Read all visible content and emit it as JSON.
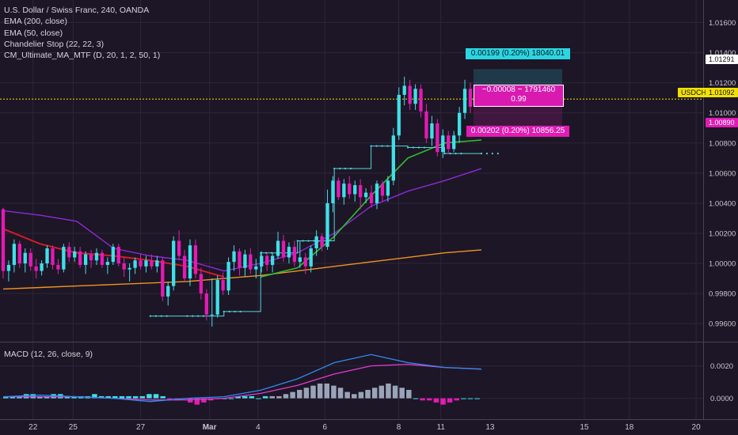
{
  "legend": {
    "title": "U.S. Dollar / Swiss Franc, 240, OANDA",
    "indicators": [
      "EMA (200, close)",
      "EMA (50, close)",
      "Chandelier Stop (22, 22, 3)",
      "CM_Ultimate_MA_MTF (D, 20, 1, 2, 50, 1)"
    ]
  },
  "macd_label": "MACD (12, 26, close, 9)",
  "price_axis": {
    "ticks": [
      "1.01600",
      "1.01400",
      "1.01200",
      "1.01000",
      "1.00800",
      "1.00600",
      "1.00400",
      "1.00200",
      "1.00000",
      "0.99800",
      "0.99600"
    ],
    "tick_values": [
      1.016,
      1.014,
      1.012,
      1.01,
      1.008,
      1.006,
      1.004,
      1.002,
      1.0,
      0.998,
      0.996
    ]
  },
  "macd_axis": {
    "ticks": [
      "0.0020",
      "0.0000"
    ],
    "tick_values": [
      0.002,
      0.0
    ]
  },
  "time_axis": {
    "labels": [
      "22",
      "25",
      "27",
      "Mar",
      "4",
      "6",
      "8",
      "11",
      "13",
      "15",
      "18",
      "20"
    ],
    "bold": [
      false,
      false,
      false,
      true,
      false,
      false,
      false,
      false,
      false,
      false,
      false,
      false
    ]
  },
  "price_tags": {
    "target": "1.01291",
    "current_symbol": "USDCHF",
    "current": "1.01092",
    "stop": "1.00890"
  },
  "risk_reward": {
    "target_label": "0.00199 (0.20%) 18040.01",
    "mid_line1": "−0.00008 ~ 1791460",
    "mid_line2": "0.99",
    "stop_label": "0.00202 (0.20%) 10856.25"
  },
  "colors": {
    "background": "#1d1626",
    "grid": "#2e2638",
    "bull": "#3fe0e8",
    "bear": "#e31bb4",
    "ema200": "#f0941e",
    "ema50": "#2fbf2f",
    "chandelier": "#4fd6dc",
    "ma_upper": "#8d2ad6",
    "ma_red": "#d11c2a",
    "macd_line": "#2e8bf0",
    "signal_line": "#e23ccf",
    "current_line": "#f2e000"
  },
  "chart_data": {
    "type": "candlestick",
    "symbol": "USDCHF",
    "timeframe": "240",
    "ylim": [
      0.9948,
      1.0175
    ],
    "candles": [
      [
        1.0036,
        1.0037,
        0.999,
        0.9995
      ],
      [
        0.9995,
        1.0002,
        0.9988,
        0.9999
      ],
      [
        0.9999,
        1.0016,
        0.9994,
        1.0013
      ],
      [
        1.0013,
        1.0015,
        0.9997,
        1.0
      ],
      [
        1.0,
        1.001,
        0.9994,
        1.0007
      ],
      [
        1.0007,
        1.001,
        0.9995,
        0.9998
      ],
      [
        0.9998,
        1.0003,
        0.999,
        0.9995
      ],
      [
        0.9995,
        1.0002,
        0.9992,
        1.0
      ],
      [
        1.0,
        1.0012,
        0.9997,
        1.001
      ],
      [
        1.001,
        1.0012,
        0.9996,
        0.9999
      ],
      [
        0.9999,
        1.0003,
        0.9993,
        0.9996
      ],
      [
        0.9996,
        1.0013,
        0.9994,
        1.0011
      ],
      [
        1.0011,
        1.0014,
        1.0001,
        1.0004
      ],
      [
        1.0004,
        1.0011,
        1.0001,
        1.0008
      ],
      [
        1.0008,
        1.0011,
        0.9997,
        0.9999
      ],
      [
        0.9999,
        1.0008,
        0.9993,
        1.0006
      ],
      [
        1.0006,
        1.0009,
        0.9997,
        1.0002
      ],
      [
        1.0002,
        1.001,
        0.9999,
        1.0007
      ],
      [
        1.0007,
        1.0009,
        0.9997,
        0.9999
      ],
      [
        0.9999,
        1.0004,
        0.9993,
        1.0001
      ],
      [
        1.0001,
        1.0013,
        0.9999,
        1.0011
      ],
      [
        1.0011,
        1.0013,
        0.9998,
        1.0
      ],
      [
        1.0,
        1.0004,
        0.9991,
        0.9996
      ],
      [
        0.9996,
        1.0,
        0.9988,
        0.9997
      ],
      [
        0.9997,
        1.0004,
        0.9993,
        1.0002
      ],
      [
        1.0002,
        1.0006,
        0.9996,
        0.9998
      ],
      [
        0.9998,
        1.0005,
        0.9994,
        1.0002
      ],
      [
        1.0002,
        1.0006,
        0.9996,
        0.9998
      ],
      [
        0.9998,
        1.0005,
        0.9994,
        1.0002
      ],
      [
        1.0002,
        1.0004,
        0.9975,
        0.9978
      ],
      [
        0.9978,
        0.9988,
        0.9972,
        0.9985
      ],
      [
        0.9985,
        1.0018,
        0.9982,
        1.0015
      ],
      [
        1.0015,
        1.0022,
        1.0002,
        1.0005
      ],
      [
        1.0005,
        1.0009,
        0.9988,
        0.999
      ],
      [
        0.999,
        1.0016,
        0.9985,
        1.0012
      ],
      [
        1.0012,
        1.0016,
        0.999,
        0.9993
      ],
      [
        0.9993,
        0.9997,
        0.9976,
        0.998
      ],
      [
        0.998,
        0.9983,
        0.9962,
        0.9966
      ],
      [
        0.9966,
        0.999,
        0.9958,
        0.9966
      ],
      [
        0.9966,
        0.9992,
        0.9964,
        0.9989
      ],
      [
        0.9989,
        0.9994,
        0.9979,
        0.9982
      ],
      [
        0.9982,
        1.0004,
        0.9979,
        1.0001
      ],
      [
        1.0001,
        1.0012,
        0.9995,
        1.0008
      ],
      [
        1.0008,
        1.001,
        0.9992,
        0.9997
      ],
      [
        0.9997,
        1.0009,
        0.9991,
        1.0006
      ],
      [
        1.0006,
        1.001,
        0.9993,
        0.9996
      ],
      [
        0.9996,
        1.0003,
        0.999,
        0.9998
      ],
      [
        0.9998,
        1.0008,
        0.9994,
        1.0005
      ],
      [
        1.0005,
        1.0007,
        0.9995,
        0.9999
      ],
      [
        0.9999,
        1.0007,
        0.9994,
        1.0005
      ],
      [
        1.0005,
        1.0021,
        1.0003,
        1.0015
      ],
      [
        1.0015,
        1.0019,
        1.0001,
        1.0004
      ],
      [
        1.0004,
        1.0014,
        1.0,
        1.0011
      ],
      [
        1.0011,
        1.0015,
        0.9998,
        1.0001
      ],
      [
        1.0001,
        1.0015,
        0.9997,
        1.0004
      ],
      [
        1.0004,
        1.0007,
        0.9993,
        0.9998
      ],
      [
        0.9998,
        1.0012,
        0.9994,
        1.001
      ],
      [
        1.001,
        1.0022,
        1.0005,
        1.0018
      ],
      [
        1.0018,
        1.002,
        1.0008,
        1.0011
      ],
      [
        1.0011,
        1.0049,
        1.0009,
        1.004
      ],
      [
        1.004,
        1.0058,
        1.0034,
        1.0055
      ],
      [
        1.0055,
        1.0057,
        1.0042,
        1.0044
      ],
      [
        1.0044,
        1.0056,
        1.0039,
        1.0053
      ],
      [
        1.0053,
        1.0058,
        1.0043,
        1.0046
      ],
      [
        1.0046,
        1.0055,
        1.0041,
        1.0052
      ],
      [
        1.0052,
        1.0056,
        1.0036,
        1.0044
      ],
      [
        1.0044,
        1.005,
        1.004,
        1.0047
      ],
      [
        1.0047,
        1.0052,
        1.0037,
        1.004
      ],
      [
        1.004,
        1.0055,
        1.0036,
        1.0053
      ],
      [
        1.0053,
        1.0055,
        1.0041,
        1.0045
      ],
      [
        1.0045,
        1.0058,
        1.0041,
        1.0055
      ],
      [
        1.0055,
        1.009,
        1.0052,
        1.0085
      ],
      [
        1.0085,
        1.0117,
        1.0082,
        1.0112
      ],
      [
        1.0112,
        1.0124,
        1.0105,
        1.0118
      ],
      [
        1.0118,
        1.0122,
        1.0102,
        1.0106
      ],
      [
        1.0106,
        1.0119,
        1.0102,
        1.0116
      ],
      [
        1.0116,
        1.0119,
        1.0097,
        1.0101
      ],
      [
        1.0101,
        1.0106,
        1.008,
        1.0083
      ],
      [
        1.0083,
        1.0098,
        1.0078,
        1.0093
      ],
      [
        1.0093,
        1.0096,
        1.0071,
        1.0074
      ],
      [
        1.0074,
        1.0089,
        1.007,
        1.0085
      ],
      [
        1.0085,
        1.0088,
        1.0073,
        1.0076
      ],
      [
        1.0076,
        1.0088,
        1.0074,
        1.0085
      ],
      [
        1.0085,
        1.0104,
        1.008,
        1.01
      ],
      [
        1.01,
        1.0122,
        1.0096,
        1.0116
      ],
      [
        1.0116,
        1.012,
        1.01,
        1.0104
      ]
    ],
    "ema200": [
      0.9983,
      0.9984,
      0.9985,
      0.9986,
      0.9987,
      0.9988,
      0.999,
      0.9992,
      0.9995,
      0.9998,
      1.0001,
      1.0004,
      1.0007,
      1.0009
    ],
    "ema50": [
      null,
      null,
      null,
      null,
      null,
      null,
      null,
      0.9991,
      0.9997,
      1.0018,
      1.0045,
      1.007,
      1.008,
      1.0082
    ],
    "chandelier_stop": [
      null,
      null,
      null,
      null,
      0.9965,
      0.9965,
      0.9968,
      1.0007,
      1.0015,
      1.0063,
      1.0078,
      1.0077,
      1.0073,
      1.0073
    ],
    "ma_purple": [
      1.0035,
      1.0032,
      1.0028,
      1.001,
      1.0005,
      1.0002,
      0.9995,
      1.0,
      1.0007,
      1.002,
      1.0038,
      1.0048,
      1.0055,
      1.0063
    ],
    "ma_red": [
      1.0023,
      1.0013,
      1.0007,
      1.0005,
      1.0002,
      0.9998,
      0.9991,
      null,
      null,
      null,
      null,
      null,
      null,
      null
    ],
    "macd": {
      "macd_line": [
        0.0001,
        0.0002,
        0.0001,
        0.0,
        -0.0002,
        0.0,
        0.0001,
        0.0005,
        0.0012,
        0.0022,
        0.0027,
        0.0022,
        0.0019,
        0.0018
      ],
      "signal_line": [
        0.0001,
        0.0001,
        0.0001,
        0.0,
        -0.0001,
        -0.0001,
        0.0,
        0.0003,
        0.0008,
        0.0015,
        0.002,
        0.0021,
        0.0019,
        0.0018
      ]
    }
  }
}
